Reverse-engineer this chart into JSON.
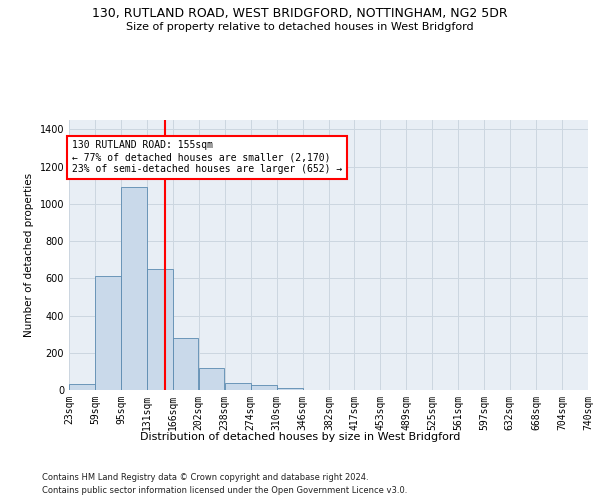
{
  "title": "130, RUTLAND ROAD, WEST BRIDGFORD, NOTTINGHAM, NG2 5DR",
  "subtitle": "Size of property relative to detached houses in West Bridgford",
  "xlabel": "Distribution of detached houses by size in West Bridgford",
  "ylabel": "Number of detached properties",
  "footnote1": "Contains HM Land Registry data © Crown copyright and database right 2024.",
  "footnote2": "Contains public sector information licensed under the Open Government Licence v3.0.",
  "bar_color": "#c9d9ea",
  "bar_edge_color": "#5a8ab0",
  "grid_color": "#ccd6e0",
  "bg_color": "#e8eef5",
  "annotation_text": "130 RUTLAND ROAD: 155sqm\n← 77% of detached houses are smaller (2,170)\n23% of semi-detached houses are larger (652) →",
  "redline_x": 155,
  "ylim": [
    0,
    1450
  ],
  "yticks": [
    0,
    200,
    400,
    600,
    800,
    1000,
    1200,
    1400
  ],
  "bin_edges": [
    23,
    59,
    95,
    131,
    166,
    202,
    238,
    274,
    310,
    346,
    382,
    417,
    453,
    489,
    525,
    561,
    597,
    632,
    668,
    704,
    740
  ],
  "bar_heights": [
    30,
    610,
    1090,
    650,
    280,
    120,
    40,
    25,
    10,
    0,
    0,
    0,
    0,
    0,
    0,
    0,
    0,
    0,
    0,
    0
  ],
  "title_fontsize": 9,
  "subtitle_fontsize": 8,
  "xlabel_fontsize": 8,
  "ylabel_fontsize": 7.5,
  "tick_fontsize": 7,
  "footnote_fontsize": 6
}
